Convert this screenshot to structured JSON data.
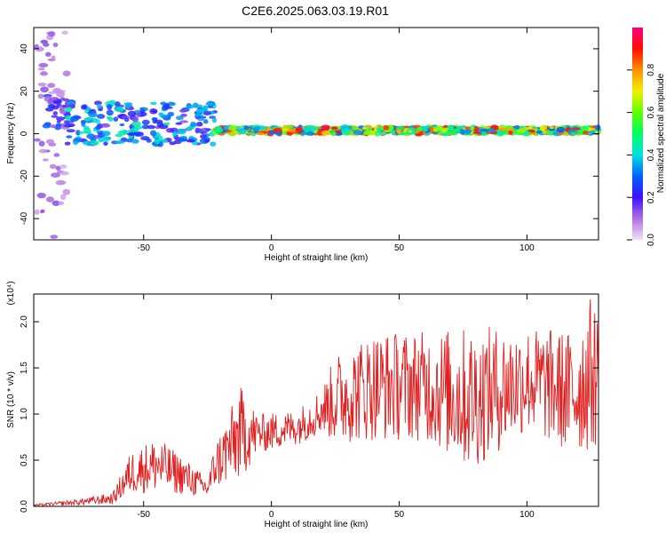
{
  "chart_data": [
    {
      "type": "heatmap",
      "title": "C2E6.2025.063.03.19.R01",
      "xlabel": "Height of straight line (km)",
      "ylabel": "Frequency (Hz)",
      "xlim": [
        -93,
        128
      ],
      "ylim": [
        -50,
        50
      ],
      "x_ticks": [
        "-50",
        "0",
        "50",
        "100"
      ],
      "y_ticks": [
        "40",
        "20",
        "0",
        "-20",
        "-40"
      ],
      "colorbar": {
        "label": "Normalized spectral amplitude",
        "range": [
          0,
          1
        ],
        "ticks": [
          "0.0",
          "0.2",
          "0.4",
          "0.6",
          "0.8"
        ],
        "colormap": [
          "#f0e0f8",
          "#b070e0",
          "#4010ff",
          "#0060ff",
          "#00e0e0",
          "#00ff60",
          "#60ff00",
          "#f0f000",
          "#ff9000",
          "#ff1000",
          "#ff0080"
        ]
      },
      "features": [
        {
          "x_range": [
            -93,
            -80
          ],
          "f_range": [
            -50,
            50
          ],
          "amplitude": 0.15
        },
        {
          "x_range": [
            -88,
            -78
          ],
          "f_range": [
            2,
            18
          ],
          "amplitude": 0.3
        },
        {
          "x_range": [
            -80,
            -22
          ],
          "f_range": [
            -5,
            15
          ],
          "amplitude": 0.45
        },
        {
          "x_range": [
            -22,
            128
          ],
          "f_range": [
            0,
            3
          ],
          "amplitude": 0.95
        }
      ]
    },
    {
      "type": "line",
      "xlabel": "Height of straight line (km)",
      "ylabel": "SNR (10 * v/v)",
      "y_multiplier": "(x10⁴)",
      "xlim": [
        -93,
        128
      ],
      "ylim": [
        0,
        2.3
      ],
      "x_ticks": [
        "-50",
        "0",
        "50",
        "100"
      ],
      "y_ticks": [
        "0.0",
        "0.5",
        "1.0",
        "1.5",
        "2.0"
      ],
      "color": "#e02020",
      "envelope": [
        {
          "x": -93,
          "lo": 0.0,
          "hi": 0.02
        },
        {
          "x": -75,
          "lo": 0.0,
          "hi": 0.08
        },
        {
          "x": -62,
          "lo": 0.0,
          "hi": 0.15
        },
        {
          "x": -55,
          "lo": 0.05,
          "hi": 0.6
        },
        {
          "x": -45,
          "lo": 0.05,
          "hi": 0.75
        },
        {
          "x": -35,
          "lo": 0.05,
          "hi": 0.55
        },
        {
          "x": -25,
          "lo": 0.05,
          "hi": 0.3
        },
        {
          "x": -22,
          "lo": 0.1,
          "hi": 0.7
        },
        {
          "x": -12,
          "lo": 0.1,
          "hi": 1.3
        },
        {
          "x": -5,
          "lo": 0.5,
          "hi": 1.0
        },
        {
          "x": 10,
          "lo": 0.6,
          "hi": 1.05
        },
        {
          "x": 20,
          "lo": 0.7,
          "hi": 1.3
        },
        {
          "x": 25,
          "lo": 0.5,
          "hi": 1.65
        },
        {
          "x": 40,
          "lo": 0.5,
          "hi": 1.9
        },
        {
          "x": 60,
          "lo": 0.5,
          "hi": 1.9
        },
        {
          "x": 78,
          "lo": 0.1,
          "hi": 1.95
        },
        {
          "x": 100,
          "lo": 0.6,
          "hi": 1.95
        },
        {
          "x": 118,
          "lo": 0.3,
          "hi": 1.9
        },
        {
          "x": 125,
          "lo": 0.3,
          "hi": 2.28
        },
        {
          "x": 128,
          "lo": 0.4,
          "hi": 2.1
        }
      ]
    }
  ]
}
